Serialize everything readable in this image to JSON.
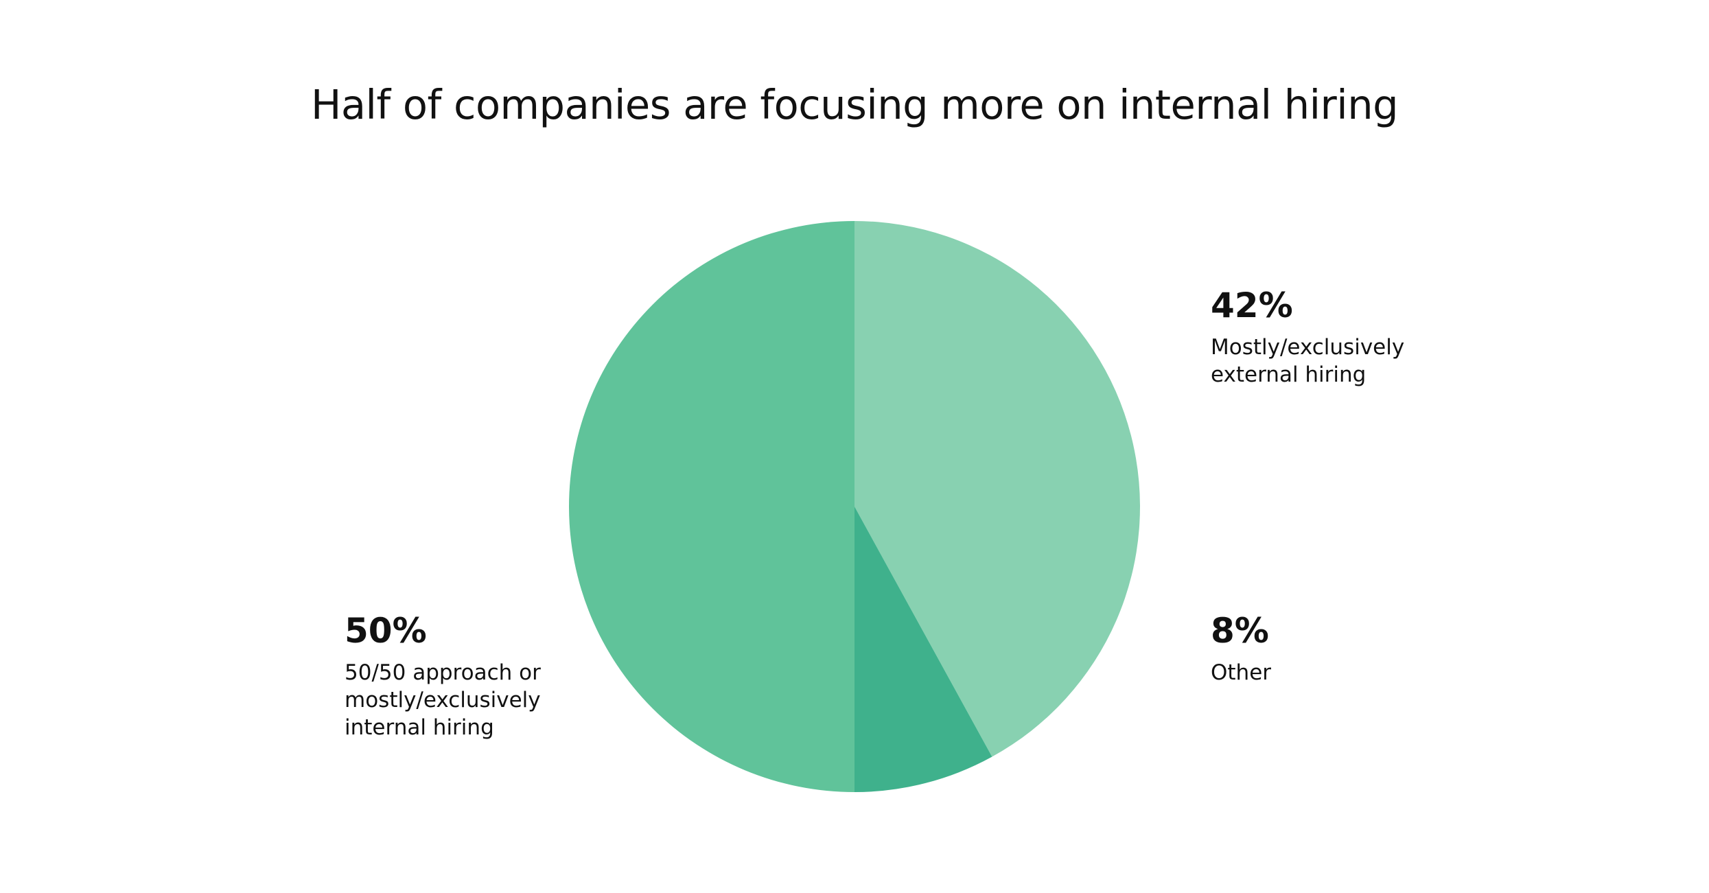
{
  "chart_data": {
    "type": "pie",
    "title": "Half of companies are focusing more on internal hiring",
    "series": [
      {
        "name": "",
        "values": [
          42,
          8,
          50
        ]
      }
    ],
    "categories": [
      "Mostly/exclusively\nexternal hiring",
      "Other",
      "50/50 approach or\nmostly/exclusively\ninternal hiring"
    ],
    "value_labels": [
      "42%",
      "8%",
      "50%"
    ],
    "start_angle": "12 o'clock",
    "direction": "clockwise",
    "legend": "none",
    "colors": [
      "#88d1b1",
      "#3fb18c",
      "#60c39a"
    ]
  }
}
